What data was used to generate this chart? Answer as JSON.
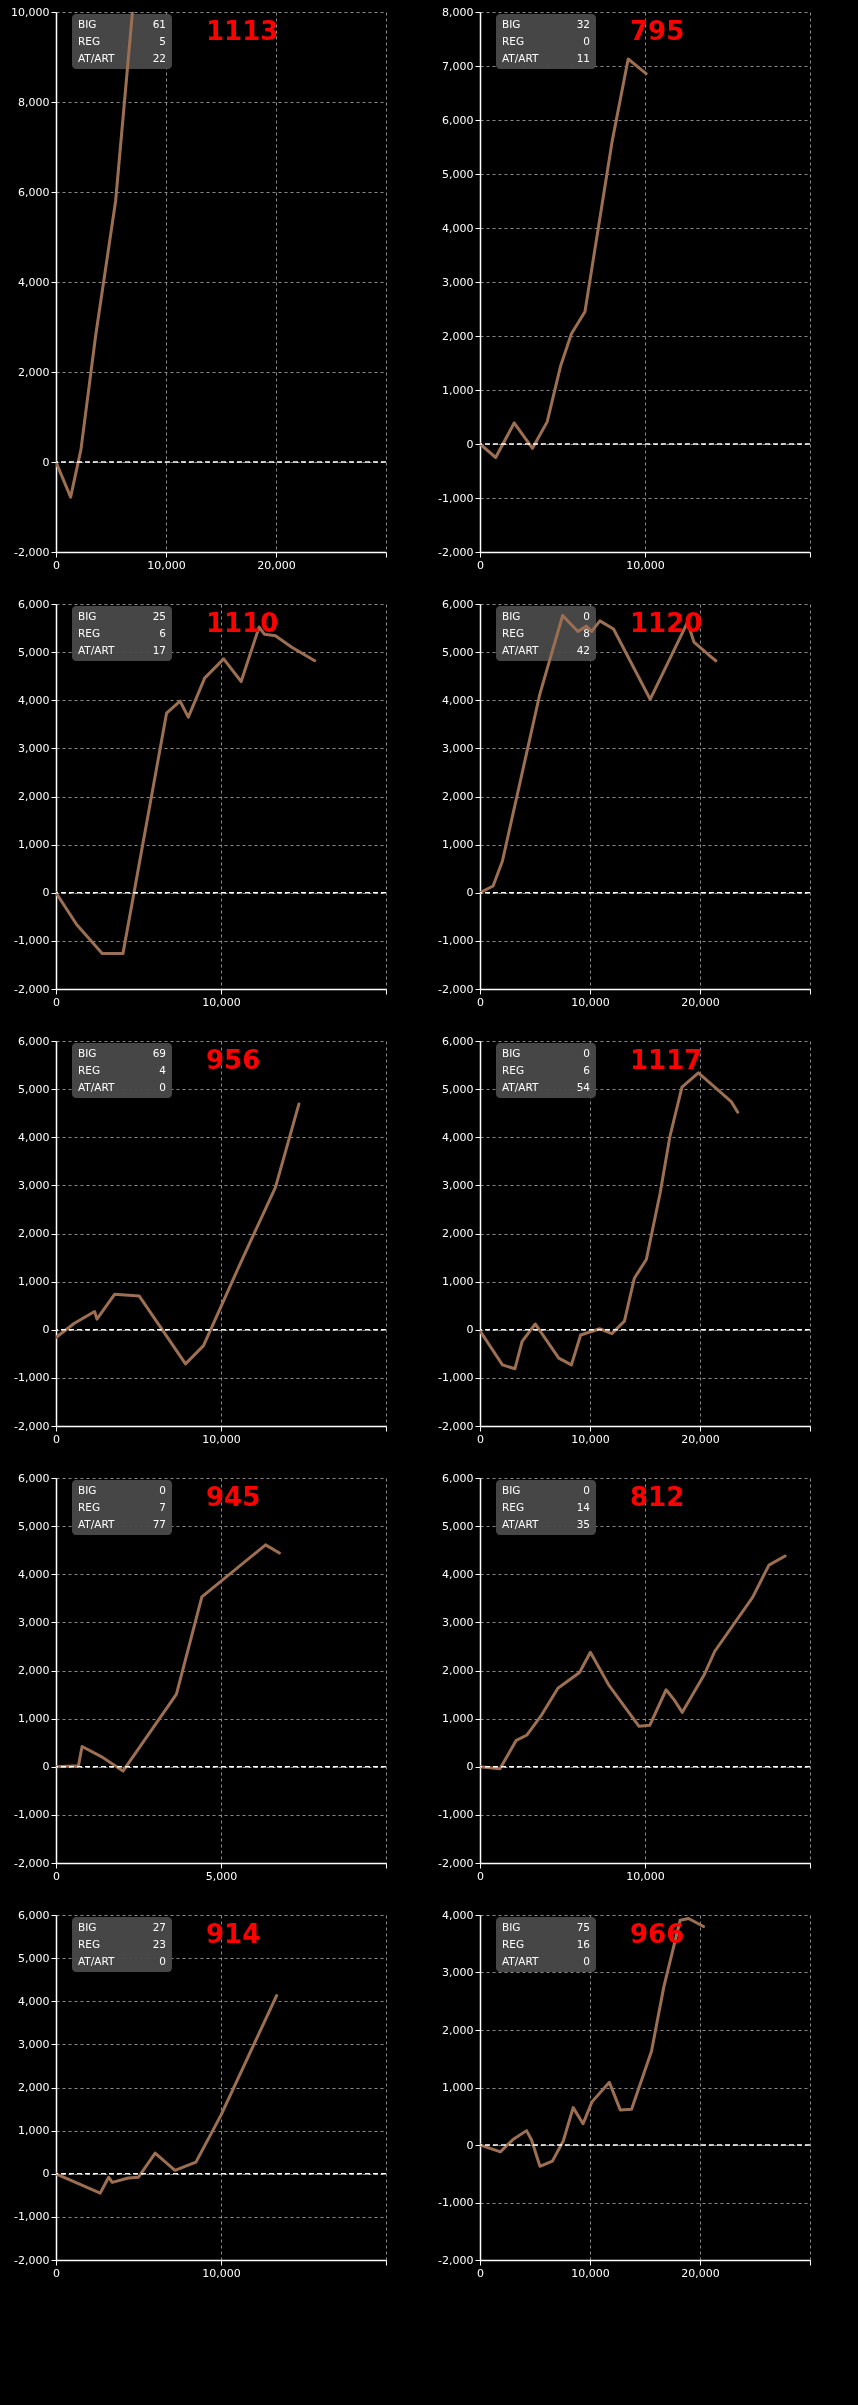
{
  "chart_data": [
    {
      "type": "line",
      "title": "1113",
      "annotations": [
        "BIG",
        "61",
        "REG",
        "5",
        "AT/ART",
        "22"
      ],
      "grid": true,
      "ref_lines": [
        {
          "axis": "y",
          "value": 0,
          "color": "#ffffff",
          "line_style": "dashed"
        }
      ],
      "xlim": [
        0,
        30000
      ],
      "xticks": [
        {
          "value": 0,
          "label": "0"
        },
        {
          "value": 10000,
          "label": "10,000"
        },
        {
          "value": 20000,
          "label": "20,000"
        },
        {
          "value": 30000,
          "label": null
        }
      ],
      "ylim": [
        -2000,
        10000
      ],
      "yticks": [
        {
          "value": -2000,
          "label": "-2,000"
        },
        {
          "value": 0,
          "label": "0"
        },
        {
          "value": 2000,
          "label": "2,000"
        },
        {
          "value": 4000,
          "label": "4,000"
        },
        {
          "value": 6000,
          "label": "6,000"
        },
        {
          "value": 8000,
          "label": "8,000"
        },
        {
          "value": 10000,
          "label": "10,000"
        }
      ],
      "x": [
        0,
        1330,
        2270,
        3600,
        5420,
        6950
      ],
      "series": [
        {
          "color": "#9c6f52",
          "values": [
            0,
            -780,
            280,
            2800,
            5800,
            10000
          ]
        }
      ]
    },
    {
      "type": "line",
      "title": "795",
      "annotations": [
        "BIG",
        "32",
        "REG",
        "0",
        "AT/ART",
        "11"
      ],
      "grid": true,
      "ref_lines": [
        {
          "axis": "y",
          "value": 0,
          "color": "#ffffff",
          "line_style": "dashed"
        }
      ],
      "xlim": [
        0,
        20000
      ],
      "xticks": [
        {
          "value": 0,
          "label": "0"
        },
        {
          "value": 10000,
          "label": "10,000"
        },
        {
          "value": 20000,
          "label": null
        }
      ],
      "ylim": [
        -2000,
        8000
      ],
      "yticks": [
        {
          "value": -2000,
          "label": "-2,000"
        },
        {
          "value": -1000,
          "label": "-1,000"
        },
        {
          "value": 0,
          "label": "0"
        },
        {
          "value": 1000,
          "label": "1,000"
        },
        {
          "value": 2000,
          "label": "2,000"
        },
        {
          "value": 3000,
          "label": "3,000"
        },
        {
          "value": 4000,
          "label": "4,000"
        },
        {
          "value": 5000,
          "label": "5,000"
        },
        {
          "value": 6000,
          "label": "6,000"
        },
        {
          "value": 7000,
          "label": "7,000"
        },
        {
          "value": 8000,
          "label": "8,000"
        }
      ],
      "x": [
        0,
        950,
        2070,
        3180,
        4070,
        4890,
        5540,
        6360,
        7180,
        8000,
        8980,
        10070
      ],
      "series": [
        {
          "color": "#9c6f52",
          "values": [
            0,
            -250,
            390,
            -80,
            410,
            1450,
            2040,
            2450,
            4020,
            5590,
            7130,
            6860
          ]
        }
      ]
    },
    {
      "type": "line",
      "title": "1110",
      "annotations": [
        "BIG",
        "25",
        "REG",
        "6",
        "AT/ART",
        "17"
      ],
      "grid": true,
      "ref_lines": [
        {
          "axis": "y",
          "value": 0,
          "color": "#ffffff",
          "line_style": "dashed"
        }
      ],
      "xlim": [
        0,
        20000
      ],
      "xticks": [
        {
          "value": 0,
          "label": "0"
        },
        {
          "value": 10000,
          "label": "10,000"
        },
        {
          "value": 20000,
          "label": null
        }
      ],
      "ylim": [
        -2000,
        6000
      ],
      "yticks": [
        {
          "value": -2000,
          "label": "-2,000"
        },
        {
          "value": -1000,
          "label": "-1,000"
        },
        {
          "value": 0,
          "label": "0"
        },
        {
          "value": 1000,
          "label": "1,000"
        },
        {
          "value": 2000,
          "label": "2,000"
        },
        {
          "value": 3000,
          "label": "3,000"
        },
        {
          "value": 4000,
          "label": "4,000"
        },
        {
          "value": 5000,
          "label": "5,000"
        },
        {
          "value": 6000,
          "label": "6,000"
        }
      ],
      "x": [
        0,
        1250,
        2800,
        4060,
        6700,
        7520,
        8020,
        9010,
        10160,
        11220,
        12310,
        12640,
        13300,
        14290,
        15680
      ],
      "series": [
        {
          "color": "#9c6f52",
          "values": [
            0,
            -660,
            -1260,
            -1260,
            3730,
            3980,
            3650,
            4460,
            4860,
            4390,
            5520,
            5370,
            5340,
            5100,
            4820
          ]
        }
      ]
    },
    {
      "type": "line",
      "title": "1120",
      "annotations": [
        "BIG",
        "0",
        "REG",
        "8",
        "AT/ART",
        "42"
      ],
      "grid": true,
      "ref_lines": [
        {
          "axis": "y",
          "value": 0,
          "color": "#ffffff",
          "line_style": "dashed"
        }
      ],
      "xlim": [
        0,
        30000
      ],
      "xticks": [
        {
          "value": 0,
          "label": "0"
        },
        {
          "value": 10000,
          "label": "10,000"
        },
        {
          "value": 20000,
          "label": "20,000"
        },
        {
          "value": 30000,
          "label": null
        }
      ],
      "ylim": [
        -2000,
        6000
      ],
      "yticks": [
        {
          "value": -2000,
          "label": "-2,000"
        },
        {
          "value": -1000,
          "label": "-1,000"
        },
        {
          "value": 0,
          "label": "0"
        },
        {
          "value": 1000,
          "label": "1,000"
        },
        {
          "value": 2000,
          "label": "2,000"
        },
        {
          "value": 3000,
          "label": "3,000"
        },
        {
          "value": 4000,
          "label": "4,000"
        },
        {
          "value": 5000,
          "label": "5,000"
        },
        {
          "value": 6000,
          "label": "6,000"
        }
      ],
      "x": [
        0,
        1190,
        2040,
        5420,
        7510,
        8900,
        9650,
        10150,
        10900,
        12140,
        14380,
        15470,
        18860,
        19450,
        20850,
        21440
      ],
      "series": [
        {
          "color": "#9c6f52",
          "values": [
            0,
            140,
            660,
            4110,
            5760,
            5430,
            5540,
            5430,
            5650,
            5480,
            4500,
            4020,
            5620,
            5210,
            4930,
            4820
          ]
        }
      ]
    },
    {
      "type": "line",
      "title": "956",
      "annotations": [
        "BIG",
        "69",
        "REG",
        "4",
        "AT/ART",
        "0"
      ],
      "grid": true,
      "ref_lines": [
        {
          "axis": "y",
          "value": 0,
          "color": "#ffffff",
          "line_style": "dashed"
        }
      ],
      "xlim": [
        0,
        20000
      ],
      "xticks": [
        {
          "value": 0,
          "label": "0"
        },
        {
          "value": 10000,
          "label": "10,000"
        },
        {
          "value": 20000,
          "label": null
        }
      ],
      "ylim": [
        -2000,
        6000
      ],
      "yticks": [
        {
          "value": -2000,
          "label": "-2,000"
        },
        {
          "value": -1000,
          "label": "-1,000"
        },
        {
          "value": 0,
          "label": "0"
        },
        {
          "value": 1000,
          "label": "1,000"
        },
        {
          "value": 2000,
          "label": "2,000"
        },
        {
          "value": 3000,
          "label": "3,000"
        },
        {
          "value": 4000,
          "label": "4,000"
        },
        {
          "value": 5000,
          "label": "5,000"
        },
        {
          "value": 6000,
          "label": "6,000"
        }
      ],
      "x": [
        0,
        1090,
        2340,
        2480,
        3560,
        5050,
        7850,
        8940,
        11160,
        13300,
        14720
      ],
      "series": [
        {
          "color": "#9c6f52",
          "values": [
            -160,
            130,
            380,
            220,
            740,
            700,
            -710,
            -330,
            1370,
            2960,
            4690
          ]
        }
      ]
    },
    {
      "type": "line",
      "title": "1117",
      "annotations": [
        "BIG",
        "0",
        "REG",
        "6",
        "AT/ART",
        "54"
      ],
      "grid": true,
      "ref_lines": [
        {
          "axis": "y",
          "value": 0,
          "color": "#ffffff",
          "line_style": "dashed"
        }
      ],
      "xlim": [
        0,
        30000
      ],
      "xticks": [
        {
          "value": 0,
          "label": "0"
        },
        {
          "value": 10000,
          "label": "10,000"
        },
        {
          "value": 20000,
          "label": "20,000"
        },
        {
          "value": 30000,
          "label": null
        }
      ],
      "ylim": [
        -2000,
        6000
      ],
      "yticks": [
        {
          "value": -2000,
          "label": "-2,000"
        },
        {
          "value": -1000,
          "label": "-1,000"
        },
        {
          "value": 0,
          "label": "0"
        },
        {
          "value": 1000,
          "label": "1,000"
        },
        {
          "value": 2000,
          "label": "2,000"
        },
        {
          "value": 3000,
          "label": "3,000"
        },
        {
          "value": 4000,
          "label": "4,000"
        },
        {
          "value": 5000,
          "label": "5,000"
        },
        {
          "value": 6000,
          "label": "6,000"
        }
      ],
      "x": [
        0,
        2040,
        3180,
        3830,
        5020,
        7160,
        8310,
        9150,
        10900,
        11990,
        13130,
        14030,
        15120,
        16370,
        17260,
        18360,
        19850,
        21340,
        22840,
        23430
      ],
      "series": [
        {
          "color": "#9c6f52",
          "values": [
            -20,
            -730,
            -810,
            -240,
            120,
            -590,
            -730,
            -110,
            20,
            -80,
            180,
            1070,
            1460,
            2830,
            4010,
            5040,
            5340,
            5040,
            4740,
            4520
          ]
        }
      ]
    },
    {
      "type": "line",
      "title": "945",
      "annotations": [
        "BIG",
        "0",
        "REG",
        "7",
        "AT/ART",
        "77"
      ],
      "grid": true,
      "ref_lines": [
        {
          "axis": "y",
          "value": 0,
          "color": "#ffffff",
          "line_style": "dashed"
        }
      ],
      "xlim": [
        0,
        10000
      ],
      "xticks": [
        {
          "value": 0,
          "label": "0"
        },
        {
          "value": 5000,
          "label": "5,000"
        },
        {
          "value": 10000,
          "label": null
        }
      ],
      "ylim": [
        -2000,
        6000
      ],
      "yticks": [
        {
          "value": -2000,
          "label": "-2,000"
        },
        {
          "value": -1000,
          "label": "-1,000"
        },
        {
          "value": 0,
          "label": "0"
        },
        {
          "value": 1000,
          "label": "1,000"
        },
        {
          "value": 2000,
          "label": "2,000"
        },
        {
          "value": 3000,
          "label": "3,000"
        },
        {
          "value": 4000,
          "label": "4,000"
        },
        {
          "value": 5000,
          "label": "5,000"
        },
        {
          "value": 6000,
          "label": "6,000"
        }
      ],
      "x": [
        0,
        680,
        790,
        1400,
        2030,
        3650,
        4420,
        6350,
        6770
      ],
      "series": [
        {
          "color": "#9c6f52",
          "values": [
            0,
            20,
            420,
            200,
            -90,
            1510,
            3530,
            4610,
            4440
          ]
        }
      ]
    },
    {
      "type": "line",
      "title": "812",
      "annotations": [
        "BIG",
        "0",
        "REG",
        "14",
        "AT/ART",
        "35"
      ],
      "grid": true,
      "ref_lines": [
        {
          "axis": "y",
          "value": 0,
          "color": "#ffffff",
          "line_style": "dashed"
        }
      ],
      "xlim": [
        0,
        20000
      ],
      "xticks": [
        {
          "value": 0,
          "label": "0"
        },
        {
          "value": 10000,
          "label": "10,000"
        },
        {
          "value": 20000,
          "label": null
        }
      ],
      "ylim": [
        -2000,
        6000
      ],
      "yticks": [
        {
          "value": -2000,
          "label": "-2,000"
        },
        {
          "value": -1000,
          "label": "-1,000"
        },
        {
          "value": 0,
          "label": "0"
        },
        {
          "value": 1000,
          "label": "1,000"
        },
        {
          "value": 2000,
          "label": "2,000"
        },
        {
          "value": 3000,
          "label": "3,000"
        },
        {
          "value": 4000,
          "label": "4,000"
        },
        {
          "value": 5000,
          "label": "5,000"
        },
        {
          "value": 6000,
          "label": "6,000"
        }
      ],
      "x": [
        0,
        1210,
        2200,
        2850,
        3740,
        4720,
        6030,
        6690,
        7840,
        9640,
        10290,
        11280,
        11770,
        12260,
        13570,
        14230,
        16520,
        17510,
        18490
      ],
      "series": [
        {
          "color": "#9c6f52",
          "values": [
            0,
            -40,
            550,
            660,
            1080,
            1630,
            1960,
            2380,
            1680,
            840,
            860,
            1600,
            1390,
            1130,
            1900,
            2400,
            3520,
            4190,
            4380
          ]
        }
      ]
    },
    {
      "type": "line",
      "title": "914",
      "annotations": [
        "BIG",
        "27",
        "REG",
        "23",
        "AT/ART",
        "0"
      ],
      "grid": true,
      "ref_lines": [
        {
          "axis": "y",
          "value": 0,
          "color": "#ffffff",
          "line_style": "dashed"
        }
      ],
      "xlim": [
        0,
        20000
      ],
      "xticks": [
        {
          "value": 0,
          "label": "0"
        },
        {
          "value": 10000,
          "label": "10,000"
        },
        {
          "value": 20000,
          "label": null
        }
      ],
      "ylim": [
        -2000,
        6000
      ],
      "yticks": [
        {
          "value": -2000,
          "label": "-2,000"
        },
        {
          "value": -1000,
          "label": "-1,000"
        },
        {
          "value": 0,
          "label": "0"
        },
        {
          "value": 1000,
          "label": "1,000"
        },
        {
          "value": 2000,
          "label": "2,000"
        },
        {
          "value": 3000,
          "label": "3,000"
        },
        {
          "value": 4000,
          "label": "4,000"
        },
        {
          "value": 5000,
          "label": "5,000"
        },
        {
          "value": 6000,
          "label": "6,000"
        }
      ],
      "x": [
        0,
        2680,
        3190,
        3410,
        4380,
        5000,
        6010,
        7210,
        8480,
        10000,
        13370
      ],
      "series": [
        {
          "color": "#9c6f52",
          "values": [
            0,
            -450,
            -80,
            -200,
            -100,
            -80,
            480,
            80,
            270,
            1360,
            4130
          ]
        }
      ]
    },
    {
      "type": "line",
      "title": "966",
      "annotations": [
        "BIG",
        "75",
        "REG",
        "16",
        "AT/ART",
        "0"
      ],
      "grid": true,
      "ref_lines": [
        {
          "axis": "y",
          "value": 0,
          "color": "#ffffff",
          "line_style": "dashed"
        }
      ],
      "xlim": [
        0,
        30000
      ],
      "xticks": [
        {
          "value": 0,
          "label": "0"
        },
        {
          "value": 10000,
          "label": "10,000"
        },
        {
          "value": 20000,
          "label": "20,000"
        },
        {
          "value": 30000,
          "label": null
        }
      ],
      "ylim": [
        -2000,
        4000
      ],
      "yticks": [
        {
          "value": -2000,
          "label": "-2,000"
        },
        {
          "value": -1000,
          "label": "-1,000"
        },
        {
          "value": 0,
          "label": "0"
        },
        {
          "value": 1000,
          "label": "1,000"
        },
        {
          "value": 2000,
          "label": "2,000"
        },
        {
          "value": 3000,
          "label": "3,000"
        },
        {
          "value": 4000,
          "label": "4,000"
        }
      ],
      "x": [
        0,
        1850,
        2970,
        4230,
        4680,
        5450,
        6580,
        7570,
        8470,
        9370,
        10180,
        11760,
        12750,
        13780,
        15590,
        16710,
        18200,
        18960,
        20320
      ],
      "series": [
        {
          "color": "#9c6f52",
          "values": [
            0,
            -120,
            90,
            250,
            90,
            -370,
            -280,
            70,
            650,
            370,
            750,
            1090,
            610,
            620,
            1630,
            2750,
            3910,
            3940,
            3800
          ]
        }
      ]
    }
  ]
}
